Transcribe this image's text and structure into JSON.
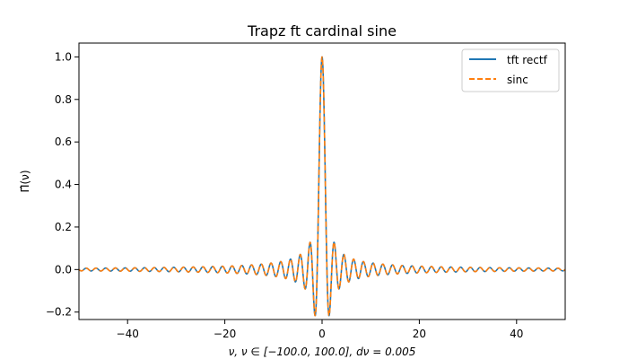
{
  "chart_data": {
    "type": "line",
    "title": "Trapz ft cardinal sine",
    "xlabel": "ν, ν ∈ [−100.0, 100.0], dν = 0.005",
    "ylabel": "Π̂(ν)",
    "xlim": [
      -50,
      50
    ],
    "ylim": [
      -0.235,
      1.065
    ],
    "x_ticks": [
      -40,
      -20,
      0,
      20,
      40
    ],
    "x_tick_labels": [
      "−40",
      "−20",
      "0",
      "20",
      "40"
    ],
    "y_ticks": [
      -0.2,
      0.0,
      0.2,
      0.4,
      0.6,
      0.8,
      1.0
    ],
    "y_tick_labels": [
      "−0.2",
      "0.0",
      "0.2",
      "0.4",
      "0.6",
      "0.8",
      "1.0"
    ],
    "grid": false,
    "legend_position": "upper-right",
    "x_range": [
      -50,
      50
    ],
    "x_step": 0.05,
    "series": [
      {
        "name": "tft rectf",
        "function": "sinc",
        "color": "#1f77b4",
        "dash": "solid"
      },
      {
        "name": "sinc",
        "function": "sinc",
        "color": "#ff7f0e",
        "dash": "dashed"
      }
    ]
  }
}
